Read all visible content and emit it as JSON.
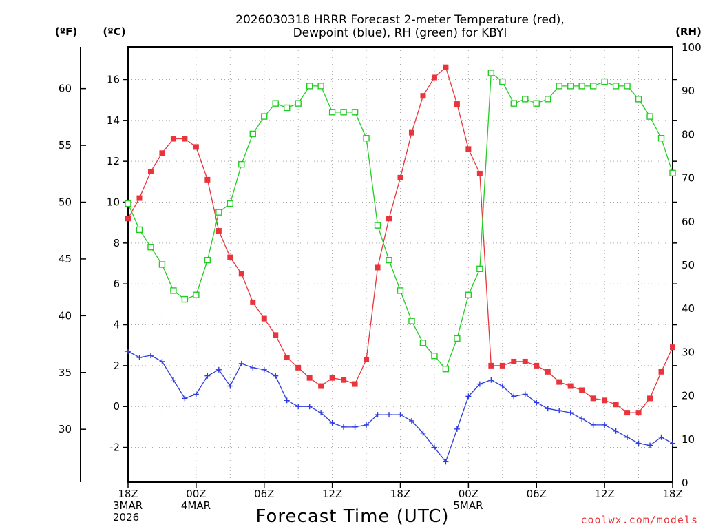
{
  "chart_data": {
    "type": "line",
    "title": [
      "2026030318 HRRR Forecast 2-meter Temperature (red),",
      "Dewpoint (blue), RH (green) for KBYI"
    ],
    "xlabel": "Forecast Time (UTC)",
    "credit": "coolwx.com/models",
    "unit_labels": {
      "fahrenheit": "(ºF)",
      "celsius": "(ºC)",
      "rh": "(RH)"
    },
    "x_range": [
      0,
      48
    ],
    "x_ticks": [
      {
        "x": 0,
        "lines": [
          "18Z",
          "3MAR",
          "2026"
        ]
      },
      {
        "x": 6,
        "lines": [
          "00Z",
          "4MAR"
        ]
      },
      {
        "x": 12,
        "lines": [
          "06Z"
        ]
      },
      {
        "x": 18,
        "lines": [
          "12Z"
        ]
      },
      {
        "x": 24,
        "lines": [
          "18Z"
        ]
      },
      {
        "x": 30,
        "lines": [
          "00Z",
          "5MAR"
        ]
      },
      {
        "x": 36,
        "lines": [
          "06Z"
        ]
      },
      {
        "x": 42,
        "lines": [
          "12Z"
        ]
      },
      {
        "x": 48,
        "lines": [
          "18Z"
        ]
      }
    ],
    "celsius_axis": {
      "range": [
        -3.7,
        17.6
      ],
      "ticks": [
        16,
        14,
        12,
        10,
        8,
        6,
        4,
        2,
        0,
        -2
      ]
    },
    "fahrenheit_axis": {
      "range": [
        25.34,
        63.68
      ],
      "ticks": [
        60,
        55,
        50,
        45,
        40,
        35,
        30
      ]
    },
    "rh_axis": {
      "range": [
        0,
        100
      ],
      "ticks": [
        100,
        90,
        80,
        70,
        60,
        50,
        40,
        30,
        20,
        10,
        0
      ]
    },
    "series": [
      {
        "name": "Temperature (°C)",
        "color": "#e8343a",
        "marker": "filled-square",
        "axis": "celsius",
        "values": [
          9.2,
          10.2,
          11.5,
          12.4,
          13.1,
          13.1,
          12.7,
          11.1,
          8.6,
          7.3,
          6.5,
          5.1,
          4.3,
          3.5,
          2.4,
          1.9,
          1.4,
          1.0,
          1.4,
          1.3,
          1.1,
          2.3,
          6.8,
          9.2,
          11.2,
          13.4,
          15.2,
          16.1,
          16.6,
          14.8,
          12.6,
          11.4,
          2.0,
          2.0,
          2.2,
          2.2,
          2.0,
          1.7,
          1.2,
          1.0,
          0.8,
          0.4,
          0.3,
          0.1,
          -0.3,
          -0.3,
          0.4,
          1.7,
          2.9
        ]
      },
      {
        "name": "Dewpoint (°C)",
        "color": "#2f3cdc",
        "marker": "plus",
        "axis": "celsius",
        "values": [
          2.7,
          2.4,
          2.5,
          2.2,
          1.3,
          0.4,
          0.6,
          1.5,
          1.8,
          1.0,
          2.1,
          1.9,
          1.8,
          1.5,
          0.3,
          0.0,
          0.0,
          -0.3,
          -0.8,
          -1.0,
          -1.0,
          -0.9,
          -0.4,
          -0.4,
          -0.4,
          -0.7,
          -1.3,
          -2.0,
          -2.7,
          -1.1,
          0.5,
          1.1,
          1.3,
          1.0,
          0.5,
          0.6,
          0.2,
          -0.1,
          -0.2,
          -0.3,
          -0.6,
          -0.9,
          -0.9,
          -1.2,
          -1.5,
          -1.8,
          -1.9,
          -1.5,
          -1.8
        ]
      },
      {
        "name": "RH (%)",
        "color": "#22cc22",
        "marker": "open-square",
        "axis": "rh",
        "values": [
          64,
          58,
          54,
          50,
          44,
          42,
          43,
          51,
          62,
          64,
          73,
          80,
          84,
          87,
          86,
          87,
          91,
          91,
          85,
          85,
          85,
          79,
          59,
          51,
          44,
          37,
          32,
          29,
          26,
          33,
          43,
          49,
          94,
          92,
          87,
          88,
          87,
          88,
          91,
          91,
          91,
          91,
          92,
          91,
          91,
          88,
          84,
          79,
          71
        ]
      }
    ],
    "grid": true
  }
}
